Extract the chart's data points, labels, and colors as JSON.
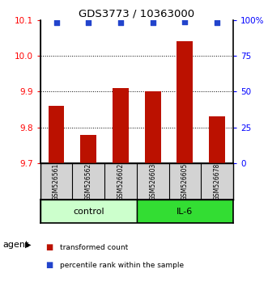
{
  "title": "GDS3773 / 10363000",
  "samples": [
    "GSM526561",
    "GSM526562",
    "GSM526602",
    "GSM526603",
    "GSM526605",
    "GSM526678"
  ],
  "bar_values": [
    9.86,
    9.78,
    9.91,
    9.9,
    10.04,
    9.83
  ],
  "percentile_values": [
    98,
    98,
    98,
    98,
    99,
    98
  ],
  "ylim_left": [
    9.7,
    10.1
  ],
  "ylim_right": [
    0,
    100
  ],
  "yticks_left": [
    9.7,
    9.8,
    9.9,
    10.0,
    10.1
  ],
  "yticks_right": [
    0,
    25,
    50,
    75,
    100
  ],
  "ytick_labels_right": [
    "0",
    "25",
    "50",
    "75",
    "100%"
  ],
  "bar_color": "#bb1100",
  "dot_color": "#2244cc",
  "groups": [
    {
      "label": "control",
      "indices": [
        0,
        1,
        2
      ],
      "color": "#ccffcc"
    },
    {
      "label": "IL-6",
      "indices": [
        3,
        4,
        5
      ],
      "color": "#33dd33"
    }
  ],
  "agent_label": "agent",
  "legend_items": [
    {
      "label": "transformed count",
      "color": "#bb1100",
      "marker": "s"
    },
    {
      "label": "percentile rank within the sample",
      "color": "#2244cc",
      "marker": "s"
    }
  ],
  "gridlines": [
    9.8,
    9.9,
    10.0
  ],
  "bar_width": 0.5
}
